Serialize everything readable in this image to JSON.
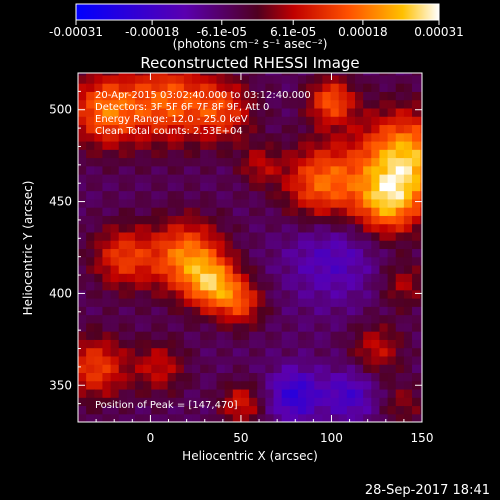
{
  "chart_data": {
    "type": "heatmap",
    "title": "Reconstructed RHESSI Image",
    "xlabel": "Heliocentric X (arcsec)",
    "ylabel": "Heliocentric Y (arcsec)",
    "xlim": [
      -40,
      150
    ],
    "ylim": [
      330,
      520
    ],
    "xticks": [
      0,
      50,
      100,
      150
    ],
    "yticks": [
      350,
      400,
      450,
      500
    ],
    "colorbar": {
      "range": [
        -0.00031,
        0.00031
      ],
      "tick_values": [
        -0.00031,
        -0.00018,
        -6.1e-05,
        6.1e-05,
        0.00018,
        0.00031
      ],
      "tick_labels": [
        "-0.00031",
        "-0.00018",
        "-6.1e-05",
        "6.1e-05",
        "0.00018",
        "0.00031"
      ],
      "unit_label": "(photons cm⁻² s⁻¹ asec⁻²)",
      "colormap": "blue-purple-red-yellow-white"
    },
    "annotations": [
      "20-Apr-2015 03:02:40.000 to 03:12:40.000",
      "Detectors: 3F 5F 6F 7F 8F 9F, Att 0",
      "Energy Range: 12.0 - 25.0 keV",
      "Clean    Total counts: 2.53E+04"
    ],
    "peak_label": "Position of Peak = [147,470]",
    "peak": {
      "x": 147,
      "y": 470
    },
    "blobs": [
      {
        "x": 140,
        "y": 472,
        "sigma": 18,
        "amp": 0.00031
      },
      {
        "x": 95,
        "y": 460,
        "sigma": 15,
        "amp": 0.00022
      },
      {
        "x": 130,
        "y": 448,
        "sigma": 12,
        "amp": 0.0002
      },
      {
        "x": 20,
        "y": 420,
        "sigma": 14,
        "amp": 0.00024
      },
      {
        "x": 35,
        "y": 405,
        "sigma": 10,
        "amp": 0.00022
      },
      {
        "x": 50,
        "y": 395,
        "sigma": 9,
        "amp": 0.00016
      },
      {
        "x": -15,
        "y": 420,
        "sigma": 12,
        "amp": 0.00017
      },
      {
        "x": -25,
        "y": 500,
        "sigma": 14,
        "amp": 0.00022
      },
      {
        "x": 10,
        "y": 505,
        "sigma": 16,
        "amp": 0.0002
      },
      {
        "x": 40,
        "y": 500,
        "sigma": 12,
        "amp": 0.00016
      },
      {
        "x": 100,
        "y": 505,
        "sigma": 9,
        "amp": 0.0002
      },
      {
        "x": 60,
        "y": 470,
        "sigma": 8,
        "amp": 0.0001
      },
      {
        "x": -30,
        "y": 360,
        "sigma": 12,
        "amp": 0.00018
      },
      {
        "x": 5,
        "y": 360,
        "sigma": 10,
        "amp": 0.00012
      },
      {
        "x": 50,
        "y": 340,
        "sigma": 8,
        "amp": 0.00014
      },
      {
        "x": 125,
        "y": 370,
        "sigma": 10,
        "amp": 0.00012
      },
      {
        "x": 140,
        "y": 405,
        "sigma": 9,
        "amp": 0.0001
      },
      {
        "x": 140,
        "y": 340,
        "sigma": 8,
        "amp": 8e-05
      },
      {
        "x": 80,
        "y": 345,
        "sigma": 10,
        "amp": -0.00016
      },
      {
        "x": 100,
        "y": 420,
        "sigma": 18,
        "amp": -0.0001
      },
      {
        "x": 110,
        "y": 345,
        "sigma": 10,
        "amp": -0.00012
      }
    ]
  },
  "footer": {
    "timestamp": "28-Sep-2017 18:41"
  }
}
